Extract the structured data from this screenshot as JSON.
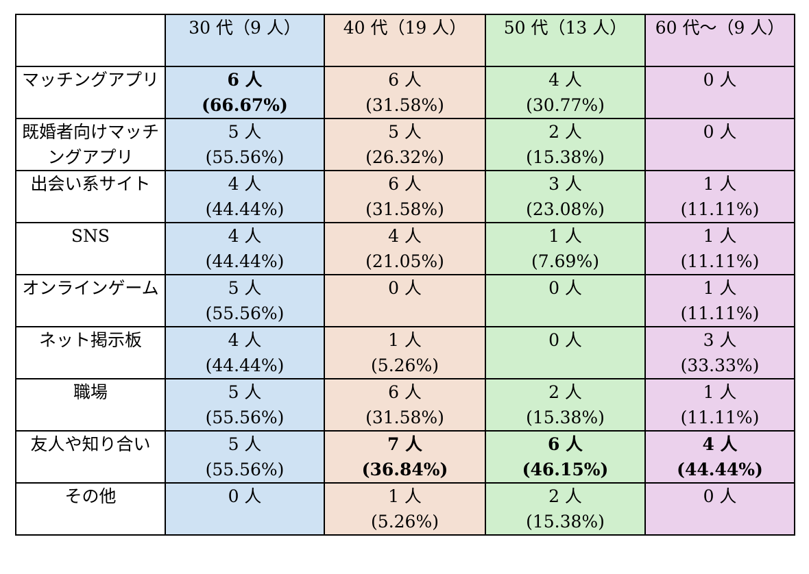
{
  "colors": {
    "col_30s": "#cfe2f3",
    "col_40s": "#f4e0d3",
    "col_50s": "#d0efcd",
    "col_60s": "#ebd1ec",
    "corner": "#ffffff",
    "border": "#000000"
  },
  "header": {
    "corner": "",
    "groups": [
      "30 代（9 人）",
      "40 代（19 人）",
      "50 代（13 人）",
      "60 代〜（9 人）"
    ]
  },
  "rows": [
    {
      "label": "マッチングアプリ",
      "cells": [
        {
          "count": "6 人",
          "pct": "(66.67%)",
          "bold": true
        },
        {
          "count": "6 人",
          "pct": "(31.58%)",
          "bold": false
        },
        {
          "count": "4 人",
          "pct": "(30.77%)",
          "bold": false
        },
        {
          "count": "0 人",
          "pct": "",
          "bold": false
        }
      ]
    },
    {
      "label": "既婚者向けマッチングアプリ",
      "cells": [
        {
          "count": "5 人",
          "pct": "(55.56%)",
          "bold": false
        },
        {
          "count": "5 人",
          "pct": "(26.32%)",
          "bold": false
        },
        {
          "count": "2 人",
          "pct": "(15.38%)",
          "bold": false
        },
        {
          "count": "0 人",
          "pct": "",
          "bold": false
        }
      ]
    },
    {
      "label": "出会い系サイト",
      "cells": [
        {
          "count": "4 人",
          "pct": "(44.44%)",
          "bold": false
        },
        {
          "count": "6 人",
          "pct": "(31.58%)",
          "bold": false
        },
        {
          "count": "3 人",
          "pct": "(23.08%)",
          "bold": false
        },
        {
          "count": "1 人",
          "pct": "(11.11%)",
          "bold": false
        }
      ]
    },
    {
      "label": "SNS",
      "cells": [
        {
          "count": "4 人",
          "pct": "(44.44%)",
          "bold": false
        },
        {
          "count": "4 人",
          "pct": "(21.05%)",
          "bold": false
        },
        {
          "count": "1 人",
          "pct": "(7.69%)",
          "bold": false
        },
        {
          "count": "1 人",
          "pct": "(11.11%)",
          "bold": false
        }
      ]
    },
    {
      "label": "オンラインゲーム",
      "cells": [
        {
          "count": "5 人",
          "pct": "(55.56%)",
          "bold": false
        },
        {
          "count": "0 人",
          "pct": "",
          "bold": false
        },
        {
          "count": "0 人",
          "pct": "",
          "bold": false
        },
        {
          "count": "1 人",
          "pct": "(11.11%)",
          "bold": false
        }
      ]
    },
    {
      "label": "ネット掲示板",
      "cells": [
        {
          "count": "4 人",
          "pct": "(44.44%)",
          "bold": false
        },
        {
          "count": "1 人",
          "pct": "(5.26%)",
          "bold": false
        },
        {
          "count": "0 人",
          "pct": "",
          "bold": false
        },
        {
          "count": "3 人",
          "pct": "(33.33%)",
          "bold": false
        }
      ]
    },
    {
      "label": "職場",
      "cells": [
        {
          "count": "5 人",
          "pct": "(55.56%)",
          "bold": false
        },
        {
          "count": "6 人",
          "pct": "(31.58%)",
          "bold": false
        },
        {
          "count": "2 人",
          "pct": "(15.38%)",
          "bold": false
        },
        {
          "count": "1 人",
          "pct": "(11.11%)",
          "bold": false
        }
      ]
    },
    {
      "label": "友人や知り合い",
      "cells": [
        {
          "count": "5 人",
          "pct": "(55.56%)",
          "bold": false
        },
        {
          "count": "7 人",
          "pct": "(36.84%)",
          "bold": true
        },
        {
          "count": "6 人",
          "pct": "(46.15%)",
          "bold": true
        },
        {
          "count": "4 人",
          "pct": "(44.44%)",
          "bold": true
        }
      ]
    },
    {
      "label": "その他",
      "cells": [
        {
          "count": "0 人",
          "pct": "",
          "bold": false
        },
        {
          "count": "1 人",
          "pct": "(5.26%)",
          "bold": false
        },
        {
          "count": "2 人",
          "pct": "(15.38%)",
          "bold": false
        },
        {
          "count": "0 人",
          "pct": "",
          "bold": false
        }
      ]
    }
  ]
}
